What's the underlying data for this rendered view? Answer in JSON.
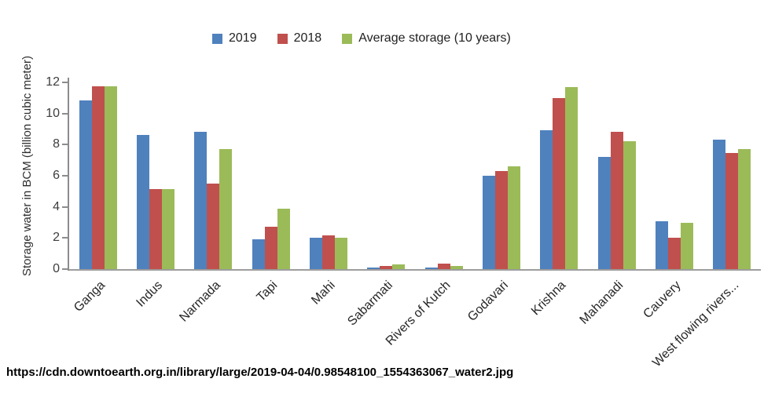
{
  "caption": "https://cdn.downtoearth.org.in/library/large/2019-04-04/0.98548100_1554363067_water2.jpg",
  "chart_data": {
    "type": "bar",
    "title": "",
    "xlabel": "",
    "ylabel": "Storage water in BCM (billion cubic meter)",
    "ylim": [
      0,
      12
    ],
    "yticks": [
      0,
      2,
      4,
      6,
      8,
      10,
      12
    ],
    "grid": false,
    "legend_position": "top-center",
    "categories": [
      "Ganga",
      "Indus",
      "Narmada",
      "Tapi",
      "Mahi",
      "Sabarmati",
      "Rivers of Kutch",
      "Godavari",
      "Krishna",
      "Mahanadi",
      "Cauvery",
      "West flowing rivers..."
    ],
    "series": [
      {
        "name": "2019",
        "color": "#4F81BD",
        "values": [
          10.85,
          8.6,
          8.8,
          1.9,
          2.0,
          0.1,
          0.1,
          6.0,
          8.9,
          7.2,
          3.1,
          8.3
        ]
      },
      {
        "name": "2018",
        "color": "#C0504D",
        "values": [
          11.75,
          5.15,
          5.5,
          2.7,
          2.15,
          0.2,
          0.35,
          6.3,
          11.0,
          8.8,
          2.0,
          7.45
        ]
      },
      {
        "name": "Average storage (10 years)",
        "color": "#9BBB59",
        "values": [
          11.75,
          5.15,
          7.7,
          3.9,
          2.0,
          0.3,
          0.2,
          6.6,
          11.7,
          8.2,
          3.0,
          7.7
        ]
      }
    ],
    "axis_color": "#8c8c8c",
    "text_color": "#3d3d3d"
  }
}
